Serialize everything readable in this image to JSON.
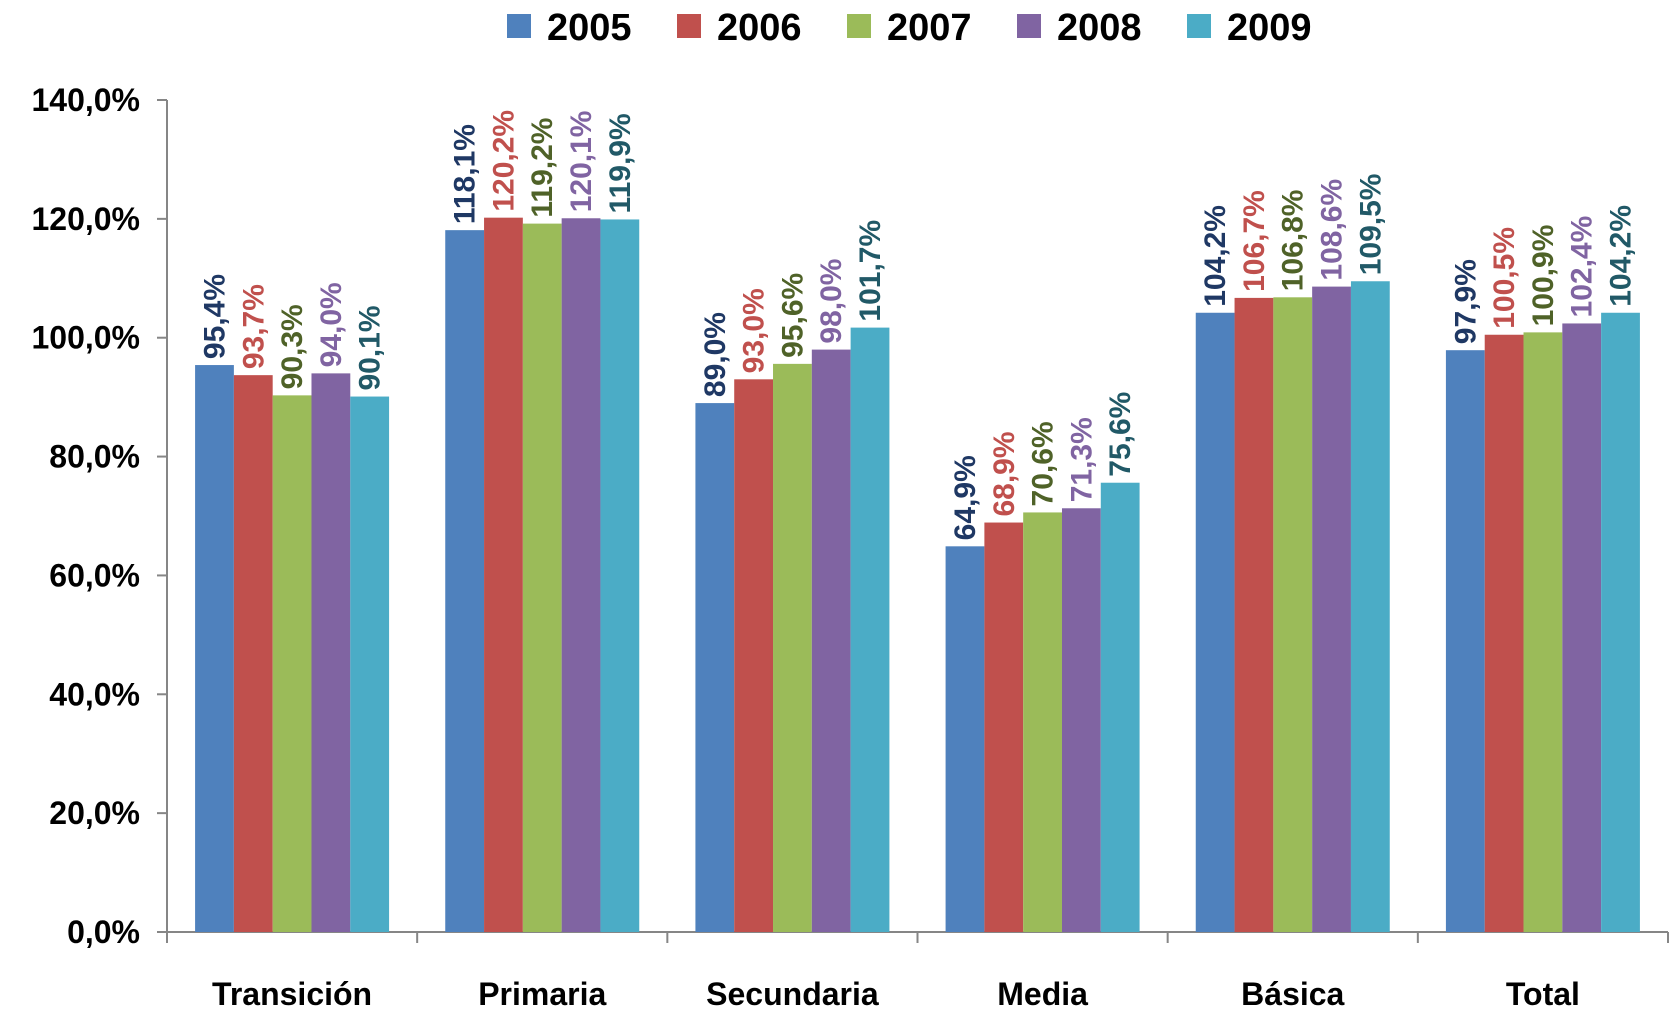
{
  "chart_data": {
    "type": "bar",
    "title": "",
    "xlabel": "",
    "ylabel": "",
    "categories": [
      "Transición",
      "Primaria",
      "Secundaria",
      "Media",
      "Básica",
      "Total"
    ],
    "ylim": [
      0,
      140
    ],
    "yticks": [
      0,
      20,
      40,
      60,
      80,
      100,
      120,
      140
    ],
    "ytick_labels": [
      "0,0%",
      "20,0%",
      "40,0%",
      "60,0%",
      "80,0%",
      "100,0%",
      "120,0%",
      "140,0%"
    ],
    "grid": false,
    "legend_position": "top",
    "series": [
      {
        "name": "2005",
        "color": "#4F81BD",
        "label_color": "#1F3864",
        "values": [
          95.4,
          118.1,
          89.0,
          64.9,
          104.2,
          97.9
        ],
        "labels": [
          "95,4%",
          "118,1%",
          "89,0%",
          "64,9%",
          "104,2%",
          "97,9%"
        ]
      },
      {
        "name": "2006",
        "color": "#C0504D",
        "label_color": "#C0504D",
        "values": [
          93.7,
          120.2,
          93.0,
          68.9,
          106.7,
          100.5
        ],
        "labels": [
          "93,7%",
          "120,2%",
          "93,0%",
          "68,9%",
          "106,7%",
          "100,5%"
        ]
      },
      {
        "name": "2007",
        "color": "#9BBB59",
        "label_color": "#4F6228",
        "values": [
          90.3,
          119.2,
          95.6,
          70.6,
          106.8,
          100.9
        ],
        "labels": [
          "90,3%",
          "119,2%",
          "95,6%",
          "70,6%",
          "106,8%",
          "100,9%"
        ]
      },
      {
        "name": "2008",
        "color": "#8064A2",
        "label_color": "#8064A2",
        "values": [
          94.0,
          120.1,
          98.0,
          71.3,
          108.6,
          102.4
        ],
        "labels": [
          "94,0%",
          "120,1%",
          "98,0%",
          "71,3%",
          "108,6%",
          "102,4%"
        ]
      },
      {
        "name": "2009",
        "color": "#4BACC6",
        "label_color": "#215967",
        "values": [
          90.1,
          119.9,
          101.7,
          75.6,
          109.5,
          104.2
        ],
        "labels": [
          "90,1%",
          "119,9%",
          "101,7%",
          "75,6%",
          "109,5%",
          "104,2%"
        ]
      }
    ]
  }
}
